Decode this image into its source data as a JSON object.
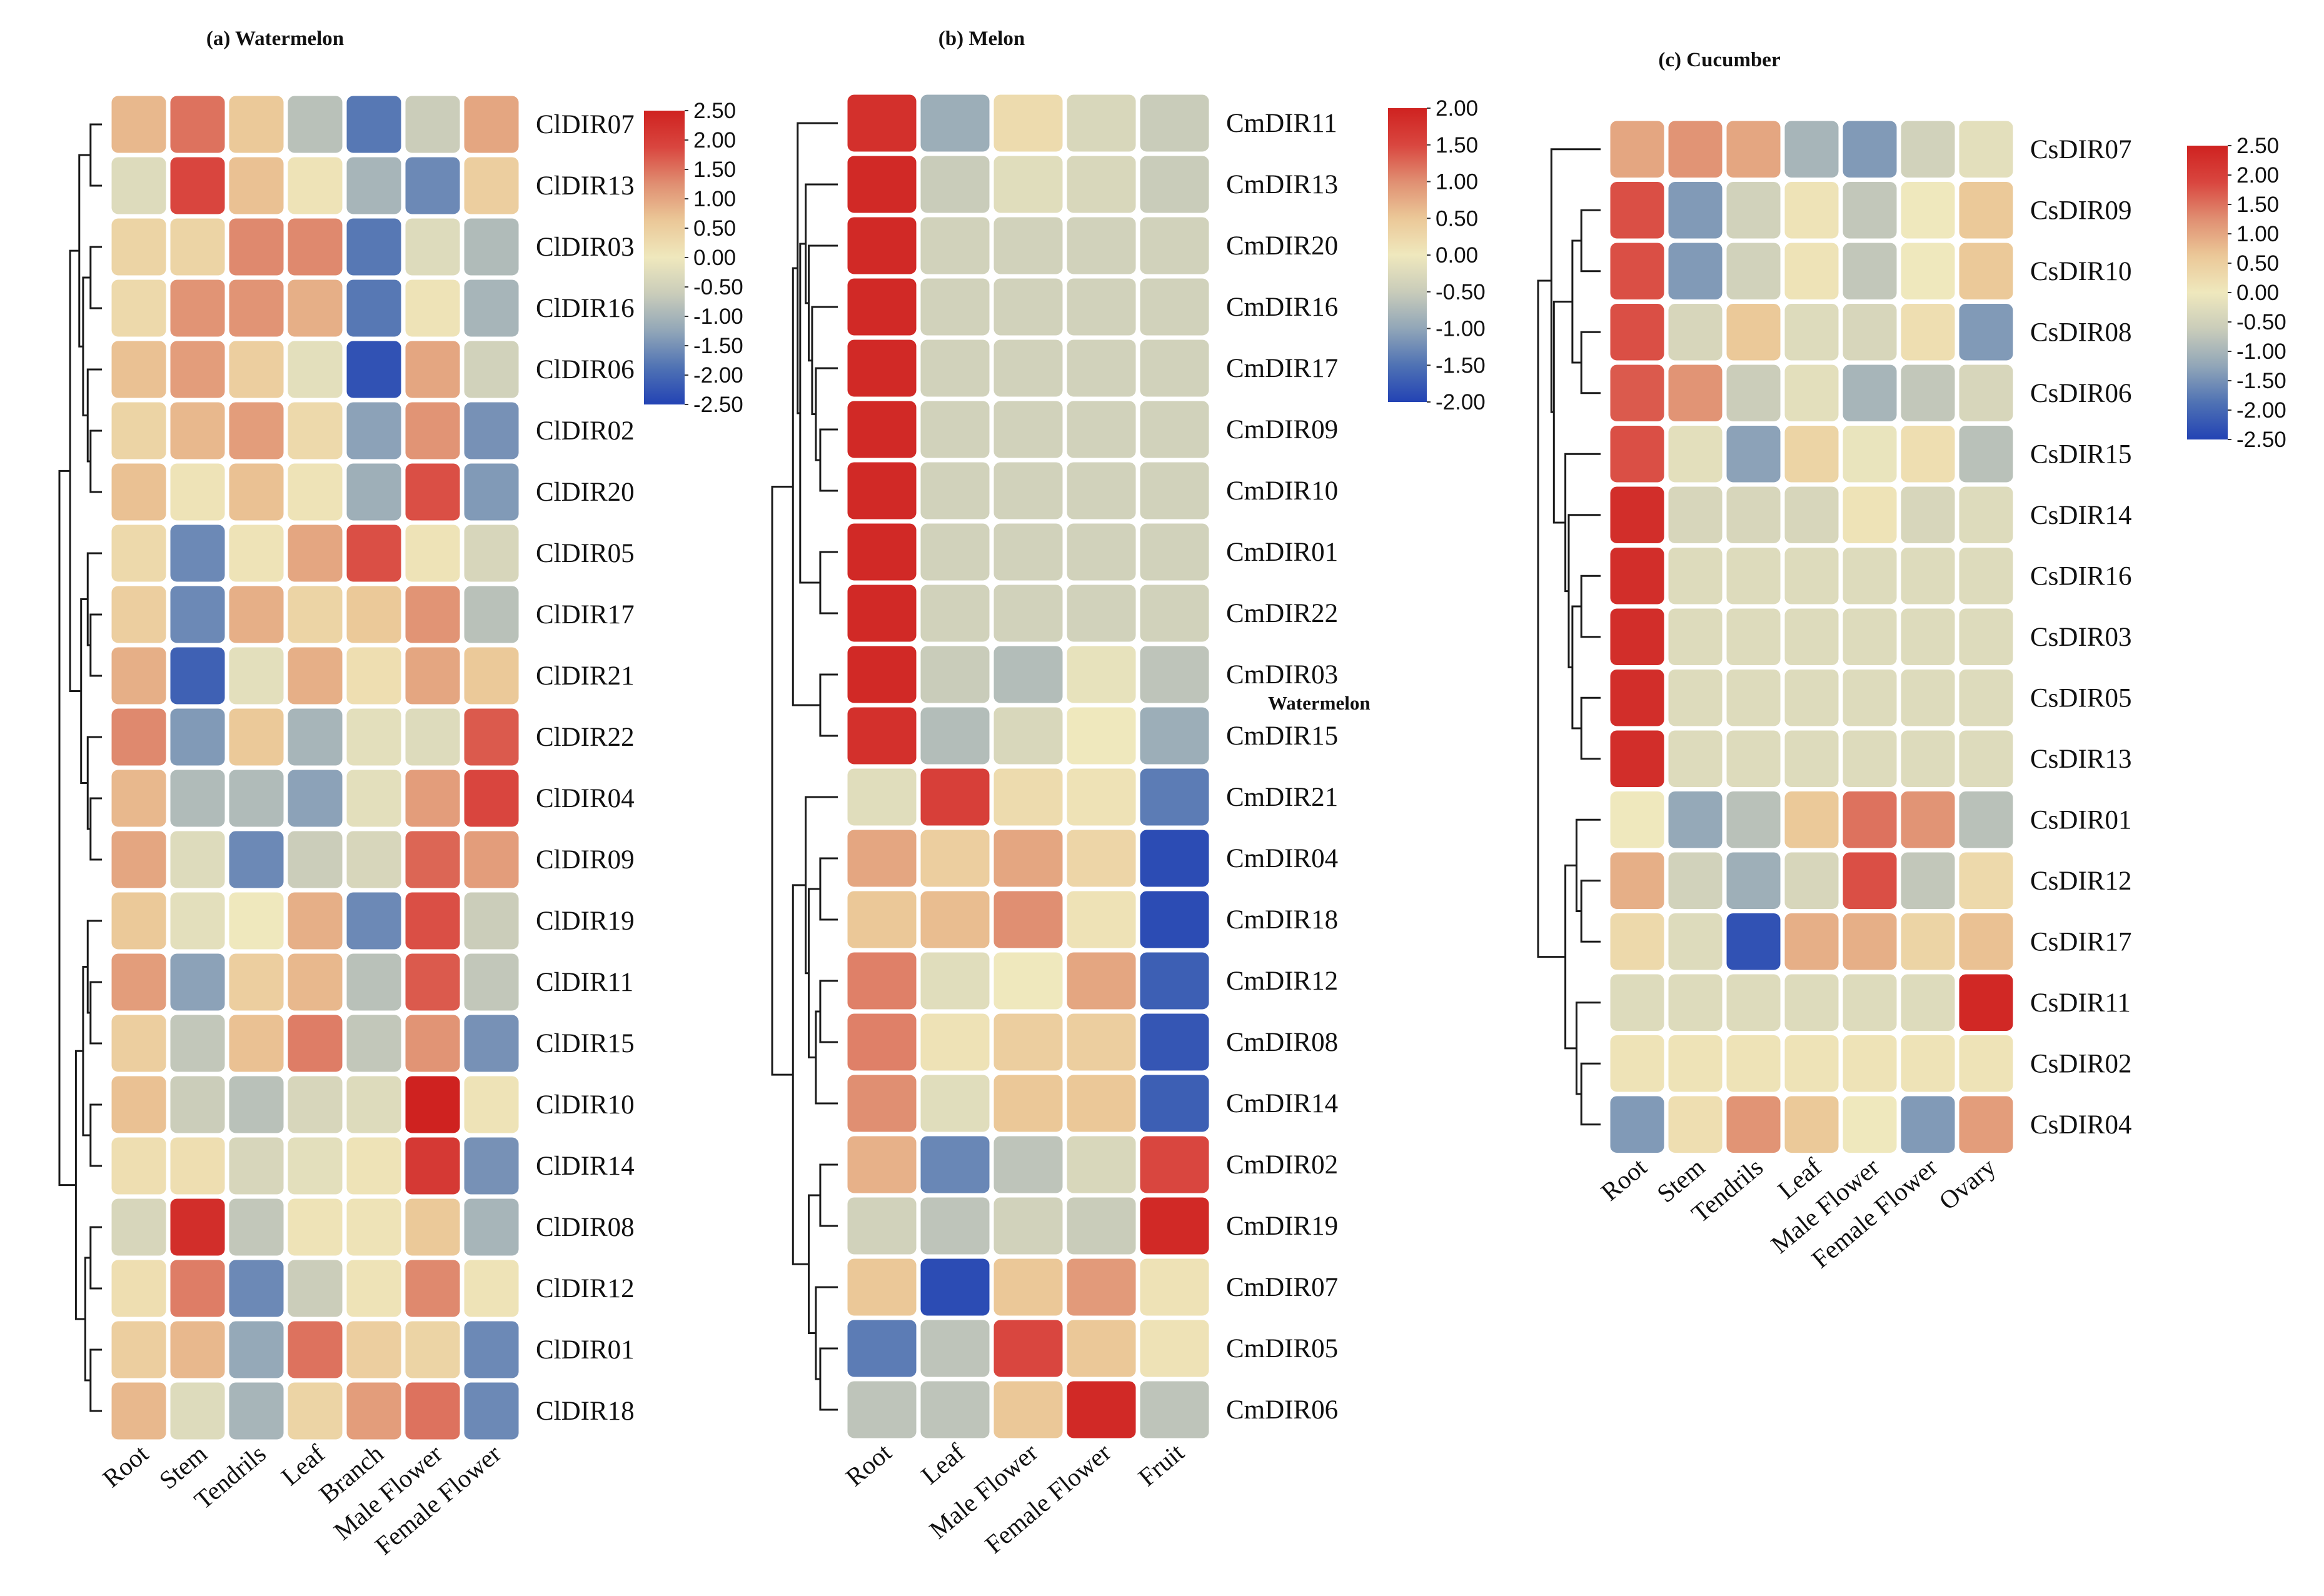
{
  "colors": {
    "scale": [
      "#2343b4",
      "#4f72b4",
      "#91a6b8",
      "#c9ccba",
      "#efe8bd",
      "#ebc898",
      "#e08f72",
      "#d9463f",
      "#cf2220"
    ],
    "tree": "#1a1a1a",
    "border": "#ffffff"
  },
  "stray_label": "Watermelon",
  "chart_data": [
    {
      "type": "heatmap",
      "panel": "a",
      "title": "(a)  Watermelon",
      "categories": [
        "Root",
        "Stem",
        "Tendrils",
        "Leaf",
        "Branch",
        "Male Flower",
        "Female Flower"
      ],
      "genes": [
        "ClDIR07",
        "ClDIR13",
        "ClDIR03",
        "ClDIR16",
        "ClDIR06",
        "ClDIR02",
        "ClDIR20",
        "ClDIR05",
        "ClDIR17",
        "ClDIR21",
        "ClDIR22",
        "ClDIR04",
        "ClDIR09",
        "ClDIR19",
        "ClDIR11",
        "ClDIR15",
        "ClDIR10",
        "ClDIR14",
        "ClDIR08",
        "ClDIR12",
        "ClDIR01",
        "ClDIR18"
      ],
      "values": [
        [
          0.8,
          1.5,
          0.6,
          -0.8,
          -1.8,
          -0.6,
          1.0
        ],
        [
          -0.3,
          1.9,
          0.7,
          0.1,
          -1.0,
          -1.6,
          0.5
        ],
        [
          0.4,
          0.4,
          1.3,
          1.3,
          -1.8,
          -0.3,
          -0.9
        ],
        [
          0.3,
          1.2,
          1.2,
          0.9,
          -1.8,
          0.1,
          -1.0
        ],
        [
          0.7,
          1.1,
          0.5,
          -0.2,
          -2.3,
          1.0,
          -0.5
        ],
        [
          0.4,
          0.8,
          1.1,
          0.3,
          -1.3,
          1.2,
          -1.5
        ],
        [
          0.7,
          0.1,
          0.7,
          0.1,
          -1.1,
          1.8,
          -1.4
        ],
        [
          0.3,
          -1.6,
          0.1,
          1.0,
          1.8,
          0.1,
          -0.4
        ],
        [
          0.5,
          -1.6,
          0.9,
          0.4,
          0.6,
          1.2,
          -0.8
        ],
        [
          0.9,
          -2.1,
          -0.2,
          0.9,
          0.2,
          1.0,
          0.6
        ],
        [
          1.3,
          -1.4,
          0.6,
          -1.0,
          -0.2,
          -0.3,
          1.7
        ],
        [
          0.8,
          -0.9,
          -0.9,
          -1.3,
          -0.2,
          1.1,
          1.9
        ],
        [
          1.0,
          -0.3,
          -1.6,
          -0.6,
          -0.4,
          1.6,
          1.1
        ],
        [
          0.6,
          -0.2,
          0.0,
          0.9,
          -1.6,
          1.8,
          -0.6
        ],
        [
          1.1,
          -1.3,
          0.5,
          0.8,
          -0.8,
          1.7,
          -0.7
        ],
        [
          0.5,
          -0.7,
          0.7,
          1.4,
          -0.7,
          1.2,
          -1.5
        ],
        [
          0.7,
          -0.6,
          -0.8,
          -0.4,
          -0.3,
          2.5,
          0.1
        ],
        [
          0.2,
          0.2,
          -0.4,
          -0.2,
          0.1,
          2.1,
          -1.5
        ],
        [
          -0.4,
          2.3,
          -0.7,
          0.1,
          0.1,
          0.6,
          -1.0
        ],
        [
          0.2,
          1.4,
          -1.6,
          -0.6,
          0.1,
          1.3,
          0.1
        ],
        [
          0.5,
          0.8,
          -1.2,
          1.5,
          0.5,
          0.4,
          -1.6
        ],
        [
          0.8,
          -0.3,
          -1.0,
          0.4,
          1.1,
          1.5,
          -1.6
        ]
      ],
      "legend": {
        "ticks": [
          "2.50",
          "2.00",
          "1.50",
          "1.00",
          "0.50",
          "0.00",
          "-0.50",
          "-1.00",
          "-1.50",
          "-2.00",
          "-2.50"
        ],
        "range": [
          -2.5,
          2.5
        ]
      }
    },
    {
      "type": "heatmap",
      "panel": "b",
      "title": "(b)  Melon",
      "categories": [
        "Root",
        "Leaf",
        "Male Flower",
        "Female Flower",
        "Fruit"
      ],
      "genes": [
        "CmDIR11",
        "CmDIR13",
        "CmDIR20",
        "CmDIR16",
        "CmDIR17",
        "CmDIR09",
        "CmDIR10",
        "CmDIR01",
        "CmDIR22",
        "CmDIR03",
        "CmDIR15",
        "CmDIR21",
        "CmDIR04",
        "CmDIR18",
        "CmDIR12",
        "CmDIR08",
        "CmDIR14",
        "CmDIR02",
        "CmDIR19",
        "CmDIR07",
        "CmDIR05",
        "CmDIR06"
      ],
      "values": [
        [
          1.8,
          -0.9,
          0.2,
          -0.3,
          -0.5
        ],
        [
          1.9,
          -0.5,
          -0.2,
          -0.3,
          -0.5
        ],
        [
          1.9,
          -0.4,
          -0.4,
          -0.4,
          -0.4
        ],
        [
          1.9,
          -0.4,
          -0.4,
          -0.4,
          -0.4
        ],
        [
          1.9,
          -0.4,
          -0.4,
          -0.4,
          -0.4
        ],
        [
          1.9,
          -0.4,
          -0.4,
          -0.4,
          -0.4
        ],
        [
          1.9,
          -0.4,
          -0.4,
          -0.4,
          -0.4
        ],
        [
          1.9,
          -0.4,
          -0.4,
          -0.4,
          -0.4
        ],
        [
          1.9,
          -0.4,
          -0.4,
          -0.4,
          -0.4
        ],
        [
          1.9,
          -0.5,
          -0.7,
          -0.1,
          -0.6
        ],
        [
          1.8,
          -0.7,
          -0.3,
          0.0,
          -0.9
        ],
        [
          -0.2,
          1.6,
          0.2,
          0.1,
          -1.4
        ],
        [
          0.8,
          0.4,
          0.8,
          0.3,
          -1.9
        ],
        [
          0.5,
          0.6,
          1.0,
          0.1,
          -1.9
        ],
        [
          1.1,
          -0.2,
          0.0,
          0.8,
          -1.7
        ],
        [
          1.1,
          0.1,
          0.4,
          0.4,
          -1.8
        ],
        [
          1.0,
          -0.2,
          0.5,
          0.5,
          -1.7
        ],
        [
          0.7,
          -1.3,
          -0.6,
          -0.3,
          1.5
        ],
        [
          -0.4,
          -0.6,
          -0.4,
          -0.5,
          1.9
        ],
        [
          0.5,
          -1.9,
          0.5,
          0.9,
          0.1
        ],
        [
          -1.4,
          -0.6,
          1.5,
          0.5,
          0.1
        ],
        [
          -0.6,
          -0.6,
          0.5,
          1.9,
          -0.6
        ]
      ],
      "legend": {
        "ticks": [
          "2.00",
          "1.50",
          "1.00",
          "0.50",
          "0.00",
          "-0.50",
          "-1.00",
          "-1.50",
          "-2.00"
        ],
        "range": [
          -2.0,
          2.0
        ]
      }
    },
    {
      "type": "heatmap",
      "panel": "c",
      "title": "(c)  Cucumber",
      "categories": [
        "Root",
        "Stem",
        "Tendrils",
        "Leaf",
        "Male Flower",
        "Female Flower",
        "Ovary"
      ],
      "genes": [
        "CsDIR07",
        "CsDIR09",
        "CsDIR10",
        "CsDIR08",
        "CsDIR06",
        "CsDIR15",
        "CsDIR14",
        "CsDIR16",
        "CsDIR03",
        "CsDIR05",
        "CsDIR13",
        "CsDIR01",
        "CsDIR12",
        "CsDIR17",
        "CsDIR11",
        "CsDIR02",
        "CsDIR04"
      ],
      "values": [
        [
          1.0,
          1.2,
          1.0,
          -1.0,
          -1.4,
          -0.5,
          -0.2
        ],
        [
          1.8,
          -1.4,
          -0.5,
          0.1,
          -0.7,
          0.0,
          0.6
        ],
        [
          1.8,
          -1.4,
          -0.5,
          0.1,
          -0.7,
          0.0,
          0.6
        ],
        [
          1.8,
          -0.4,
          0.6,
          -0.3,
          -0.4,
          0.2,
          -1.4
        ],
        [
          1.7,
          1.2,
          -0.6,
          -0.2,
          -1.0,
          -0.7,
          -0.4
        ],
        [
          1.8,
          -0.2,
          -1.3,
          0.4,
          -0.1,
          0.2,
          -0.8
        ],
        [
          2.3,
          -0.4,
          -0.4,
          -0.4,
          0.1,
          -0.4,
          -0.3
        ],
        [
          2.3,
          -0.3,
          -0.3,
          -0.3,
          -0.3,
          -0.3,
          -0.3
        ],
        [
          2.3,
          -0.3,
          -0.3,
          -0.3,
          -0.3,
          -0.3,
          -0.3
        ],
        [
          2.3,
          -0.3,
          -0.3,
          -0.3,
          -0.3,
          -0.3,
          -0.3
        ],
        [
          2.3,
          -0.3,
          -0.3,
          -0.3,
          -0.3,
          -0.3,
          -0.3
        ],
        [
          0.0,
          -1.2,
          -0.8,
          0.6,
          1.5,
          1.2,
          -0.8
        ],
        [
          0.9,
          -0.5,
          -1.1,
          -0.4,
          1.8,
          -0.7,
          0.3
        ],
        [
          0.3,
          -0.3,
          -2.3,
          0.9,
          0.9,
          0.4,
          0.7
        ],
        [
          -0.3,
          -0.3,
          -0.3,
          -0.3,
          -0.3,
          -0.3,
          2.4
        ],
        [
          0.1,
          0.1,
          0.1,
          0.1,
          0.1,
          0.1,
          0.1
        ],
        [
          -1.4,
          0.2,
          1.2,
          0.6,
          0.0,
          -1.4,
          1.1
        ]
      ],
      "legend": {
        "ticks": [
          "2.50",
          "2.00",
          "1.50",
          "1.00",
          "0.50",
          "0.00",
          "-0.50",
          "-1.00",
          "-1.50",
          "-2.00",
          "-2.50"
        ],
        "range": [
          -2.5,
          2.5
        ]
      }
    }
  ]
}
